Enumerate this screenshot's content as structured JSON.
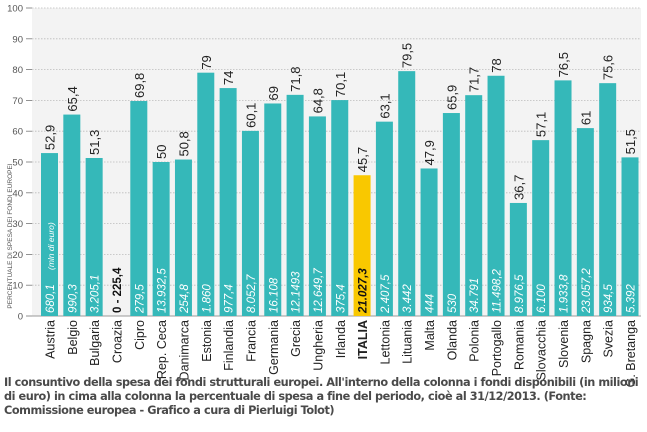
{
  "chart_data": {
    "type": "bar",
    "ylabel": "PERCENTUALE DI SPESA DEI FONDI EUROPEI",
    "ylim": [
      0,
      100
    ],
    "yticks": [
      0,
      10,
      20,
      30,
      40,
      50,
      60,
      70,
      80,
      90,
      100
    ],
    "grid": true,
    "categories": [
      "Austria",
      "Belgio",
      "Bulgaria",
      "Croazia",
      "Cipro",
      "Rep. Ceca",
      "Danimarca",
      "Estonia",
      "Finlandia",
      "Francia",
      "Germania",
      "Grecia",
      "Ungheria",
      "Irlanda",
      "ITALIA",
      "Lettonia",
      "Lituania",
      "Malta",
      "Olanda",
      "Polonia",
      "Portogallo",
      "Romania",
      "Slovacchia",
      "Slovenia",
      "Spagna",
      "Svezia",
      "G. Bretanga"
    ],
    "values": [
      52.9,
      65.4,
      51.3,
      null,
      69.8,
      50,
      50.8,
      79,
      74,
      60.1,
      69,
      71.8,
      64.8,
      70.1,
      45.7,
      63.1,
      79.5,
      47.9,
      65.9,
      71.7,
      78,
      36.7,
      57.1,
      76.5,
      61,
      75.6,
      51.5
    ],
    "value_labels": [
      "52,9",
      "65,4",
      "51,3",
      "",
      "69,8",
      "50",
      "50,8",
      "79",
      "74",
      "60,1",
      "69",
      "71,8",
      "64,8",
      "70,1",
      "45,7",
      "63,1",
      "79,5",
      "47,9",
      "65,9",
      "71,7",
      "78",
      "36,7",
      "57,1",
      "76,5",
      "61",
      "75,6",
      "51,5"
    ],
    "funds_labels": [
      "680,1",
      "990,3",
      "3.205,1",
      "0 - 225,4",
      "279,5",
      "13.932,5",
      "254,8",
      "1.860",
      "977,4",
      "8.052,7",
      "16.108",
      "12.1493",
      "12.649,7",
      "375,4",
      "21.027,3",
      "2.407,5",
      "3.442",
      "444",
      "530",
      "34.791",
      "11.498,2",
      "8.976,5",
      "6.100",
      "1.933,8",
      "23.057,2",
      "934,5",
      "5.392"
    ],
    "funds_unit_note": "(mln di euro)",
    "highlight": "ITALIA",
    "colors": {
      "bar": "#35b8b9",
      "highlight": "#f9c800",
      "plot_bg": "#f3f3f3"
    }
  },
  "caption": "Il consuntivo della spesa dei fondi strutturali europei. All'interno della colonna i fondi disponibili (in milioni di euro) in cima alla colonna la percentuale di spesa a fine del periodo, cioè al 31/12/2013. (Fonte: Commissione europea - Grafico a cura di Pierluigi Tolot)"
}
